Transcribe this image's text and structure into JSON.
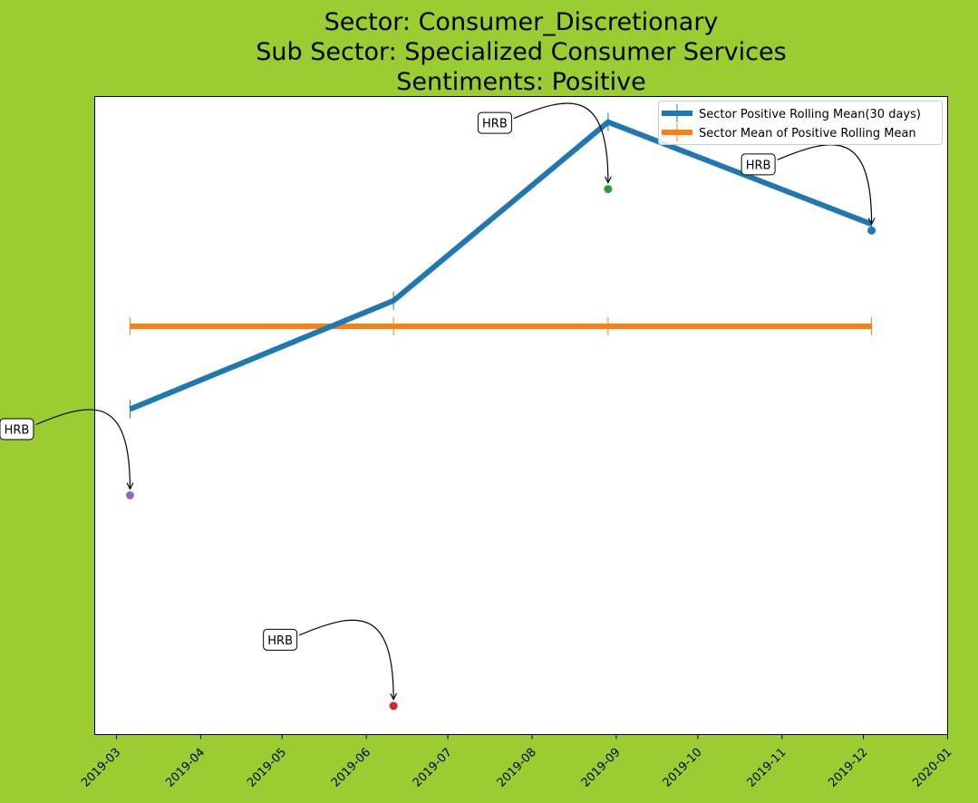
{
  "title_lines": [
    "Sector:  Consumer_Discretionary",
    "Sub Sector:  Specialized Consumer Services",
    "Sentiments:  Positive"
  ],
  "colors": {
    "figure_bg": "#9acd32",
    "axes_bg": "#ffffff",
    "rolling": "#1f77b4",
    "mean": "#ff7f0e"
  },
  "chart_data": {
    "type": "line",
    "x_axis": {
      "type": "date",
      "range": [
        "2019-02-21",
        "2020-01-01"
      ],
      "ticks": [
        "2019-03-01",
        "2019-04-01",
        "2019-05-01",
        "2019-06-01",
        "2019-07-01",
        "2019-08-01",
        "2019-09-01",
        "2019-10-01",
        "2019-11-01",
        "2019-12-01",
        "2020-01-01"
      ],
      "tick_labels": [
        "2019-03",
        "2019-04",
        "2019-05",
        "2019-06",
        "2019-07",
        "2019-08",
        "2019-09",
        "2019-10",
        "2019-11",
        "2019-12",
        "2020-01"
      ],
      "tick_label_rotation": 45
    },
    "y_axis": {
      "range": [
        0,
        1
      ],
      "tick_labels_shown": false
    },
    "legend": {
      "position": "upper right",
      "entries": [
        "Sector Positive Rolling Mean(30 days)",
        "Sector Mean of Positive Rolling Mean"
      ]
    },
    "series": [
      {
        "name": "Sector Positive Rolling Mean(30 days)",
        "color": "#1f77b4",
        "x": [
          "2019-03-06",
          "2019-06-11",
          "2019-08-29",
          "2019-12-04"
        ],
        "y": [
          0.51,
          0.68,
          0.96,
          0.8
        ]
      },
      {
        "name": "Sector Mean of Positive Rolling Mean",
        "color": "#ff7f0e",
        "x": [
          "2019-03-06",
          "2019-06-11",
          "2019-08-29",
          "2019-12-04"
        ],
        "y": [
          0.64,
          0.64,
          0.64,
          0.64
        ]
      }
    ],
    "points": [
      {
        "label": "HRB",
        "x": "2019-03-06",
        "y": 0.375,
        "color": "#9467bd",
        "label_side": "left"
      },
      {
        "label": "HRB",
        "x": "2019-06-11",
        "y": 0.045,
        "color": "#d62728",
        "label_side": "left"
      },
      {
        "label": "HRB",
        "x": "2019-08-29",
        "y": 0.855,
        "color": "#2ca02c",
        "label_side": "left"
      },
      {
        "label": "HRB",
        "x": "2019-12-04",
        "y": 0.79,
        "color": "#1f77b4",
        "label_side": "left"
      }
    ]
  }
}
